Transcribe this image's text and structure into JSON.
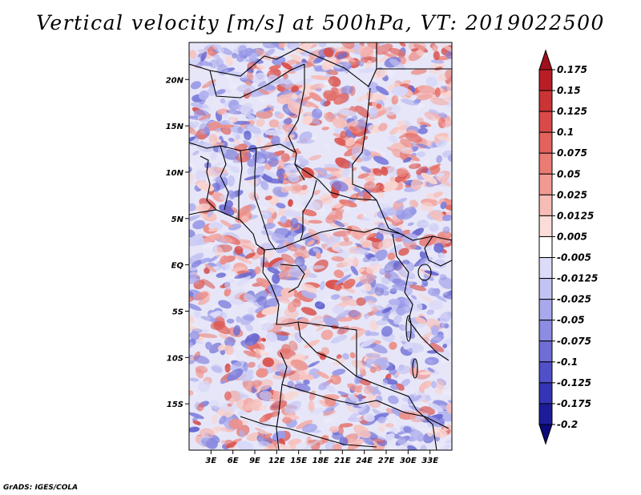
{
  "chart_data": {
    "type": "heatmap",
    "title": "Vertical velocity [m/s] at 500hPa, VT: 2019022500",
    "variable": "Vertical velocity",
    "units": "m/s",
    "level": "500hPa",
    "valid_time": "2019022500",
    "lon_range": [
      0,
      36
    ],
    "lat_range": [
      -20,
      24
    ],
    "xlabel": "",
    "ylabel": "",
    "x_ticks": [
      {
        "value": 3,
        "label": "3E"
      },
      {
        "value": 6,
        "label": "6E"
      },
      {
        "value": 9,
        "label": "9E"
      },
      {
        "value": 12,
        "label": "12E"
      },
      {
        "value": 15,
        "label": "15E"
      },
      {
        "value": 18,
        "label": "18E"
      },
      {
        "value": 21,
        "label": "21E"
      },
      {
        "value": 24,
        "label": "24E"
      },
      {
        "value": 27,
        "label": "27E"
      },
      {
        "value": 30,
        "label": "30E"
      },
      {
        "value": 33,
        "label": "33E"
      }
    ],
    "y_ticks": [
      {
        "value": 20,
        "label": "20N"
      },
      {
        "value": 15,
        "label": "15N"
      },
      {
        "value": 10,
        "label": "10N"
      },
      {
        "value": 5,
        "label": "5N"
      },
      {
        "value": 0,
        "label": "EQ"
      },
      {
        "value": -5,
        "label": "5S"
      },
      {
        "value": -10,
        "label": "10S"
      },
      {
        "value": -15,
        "label": "15S"
      }
    ],
    "colorbar": {
      "levels": [
        "0.175",
        "0.15",
        "0.125",
        "0.1",
        "0.075",
        "0.05",
        "0.025",
        "0.0125",
        "0.005",
        "-0.005",
        "-0.0125",
        "-0.025",
        "-0.05",
        "-0.075",
        "-0.1",
        "-0.125",
        "-0.175",
        "-0.2"
      ],
      "colors": [
        "#a0101c",
        "#b81e24",
        "#cb3434",
        "#d94a48",
        "#e2625c",
        "#ea7c74",
        "#f19a92",
        "#f7bcb6",
        "#fbdcd8",
        "#ffffff",
        "#dcdcf8",
        "#c3c3f3",
        "#a8a8ec",
        "#8c8ce2",
        "#6e6ed6",
        "#5050c8",
        "#3434b4",
        "#1c1c9a",
        "#0a0a7a"
      ]
    }
  },
  "credit": "GrADS: IGES/COLA"
}
